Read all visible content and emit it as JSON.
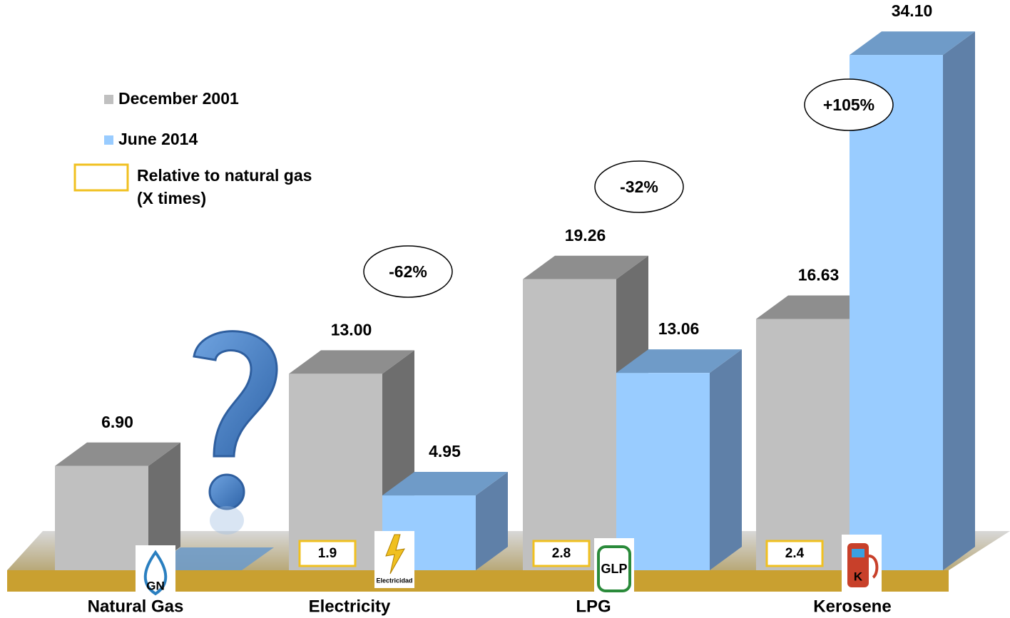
{
  "chart_data": {
    "type": "bar3d",
    "categories": [
      "Natural Gas",
      "Electricity",
      "LPG",
      "Kerosene"
    ],
    "series": [
      {
        "name": "December 2001",
        "color": "#c0c0c0",
        "values": [
          6.9,
          13.0,
          19.26,
          16.63
        ],
        "value_labels": [
          "6.90",
          "13.00",
          "19.26",
          "16.63"
        ]
      },
      {
        "name": "June 2014",
        "color": "#99ccff",
        "values": [
          null,
          4.95,
          13.06,
          34.1
        ],
        "value_labels": [
          null,
          "4.95",
          "13.06",
          "34.10"
        ]
      }
    ],
    "change_labels": [
      null,
      "-62%",
      "-32%",
      "+105%"
    ],
    "relative_to_natural_gas": [
      null,
      1.9,
      2.8,
      2.4
    ],
    "relative_legend": [
      "Relative to natural gas",
      "(X times)"
    ],
    "relative_color": "#f0c020",
    "icon_labels": [
      "GN",
      "Electricidad",
      "GLP",
      "K"
    ]
  }
}
